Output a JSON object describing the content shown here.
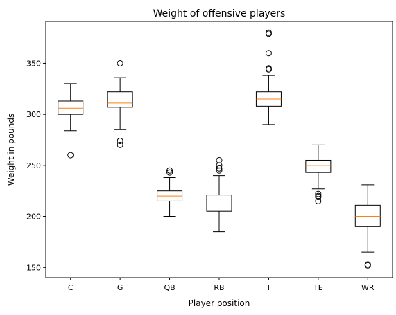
{
  "chart_data": {
    "type": "box",
    "title": "Weight of offensive players",
    "xlabel": "Player position",
    "ylabel": "Weight in pounds",
    "ylim": [
      140,
      391
    ],
    "yticks": [
      150,
      200,
      250,
      300,
      350
    ],
    "grid": false,
    "categories": [
      "C",
      "G",
      "QB",
      "RB",
      "T",
      "TE",
      "WR"
    ],
    "boxes": [
      {
        "category": "C",
        "whisker_low": 284,
        "q1": 300,
        "median": 306,
        "q3": 313,
        "whisker_high": 330,
        "outliers": [
          260
        ]
      },
      {
        "category": "G",
        "whisker_low": 285,
        "q1": 307,
        "median": 311,
        "q3": 322,
        "whisker_high": 336,
        "outliers": [
          350,
          274,
          270
        ]
      },
      {
        "category": "QB",
        "whisker_low": 200,
        "q1": 215,
        "median": 220,
        "q3": 225,
        "whisker_high": 238,
        "outliers": [
          245,
          243
        ]
      },
      {
        "category": "RB",
        "whisker_low": 185,
        "q1": 205,
        "median": 215,
        "q3": 221,
        "whisker_high": 240,
        "outliers": [
          255,
          250,
          247,
          245
        ]
      },
      {
        "category": "T",
        "whisker_low": 290,
        "q1": 308,
        "median": 315,
        "q3": 322,
        "whisker_high": 338,
        "outliers": [
          380,
          379,
          360,
          345,
          344
        ]
      },
      {
        "category": "TE",
        "whisker_low": 227,
        "q1": 243,
        "median": 250,
        "q3": 255,
        "whisker_high": 270,
        "outliers": [
          222,
          220,
          219,
          215
        ]
      },
      {
        "category": "WR",
        "whisker_low": 165,
        "q1": 190,
        "median": 200,
        "q3": 211,
        "whisker_high": 231,
        "outliers": [
          153,
          152
        ]
      }
    ],
    "colors": {
      "box": "#000000",
      "median": "#ff7f0e",
      "outlier": "#000000"
    }
  }
}
